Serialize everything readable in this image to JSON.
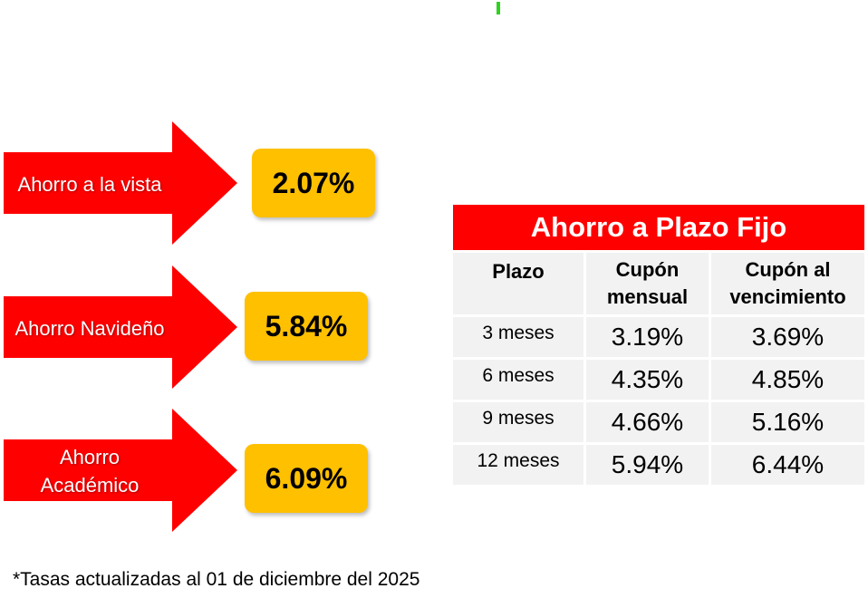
{
  "savings_products": [
    {
      "label": "Ahorro a la vista",
      "rate": "2.07%"
    },
    {
      "label": "Ahorro Navideño",
      "rate": "5.84%"
    },
    {
      "label": "Ahorro\nAcadémico",
      "rate": "6.09%"
    }
  ],
  "plazo_fijo": {
    "title": "Ahorro a Plazo Fijo",
    "headers": [
      "Plazo",
      "Cupón\nmensual",
      "Cupón al\nvencimiento"
    ],
    "rows": [
      [
        "3 meses",
        "3.19%",
        "3.69%"
      ],
      [
        "6 meses",
        "4.35%",
        "4.85%"
      ],
      [
        "9 meses",
        "4.66%",
        "5.16%"
      ],
      [
        "12 meses",
        "5.94%",
        "6.44%"
      ]
    ]
  },
  "footnote": "*Tasas actualizadas al 01 de diciembre del 2025",
  "colors": {
    "arrow_red": "#ff0000",
    "rate_box_yellow": "#ffc000",
    "table_title_red": "#ff0000",
    "cell_gray": "#f2f2f2"
  }
}
